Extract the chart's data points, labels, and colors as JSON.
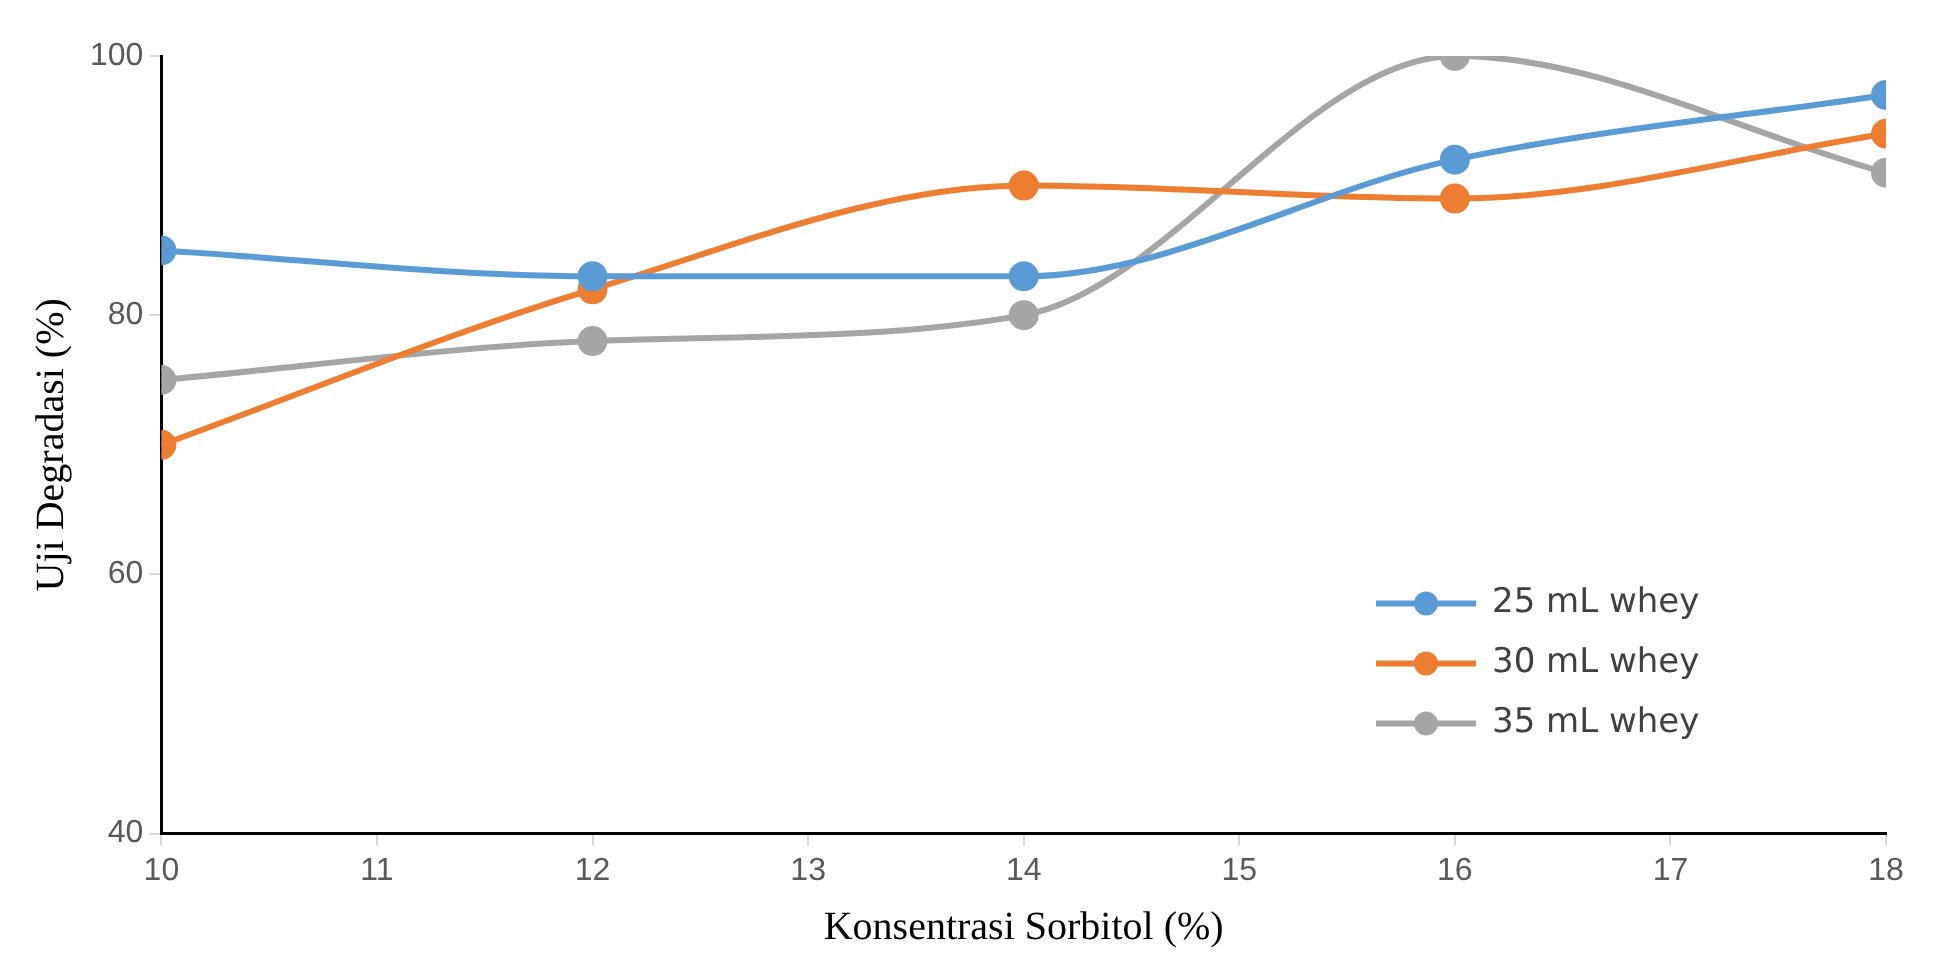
{
  "chart_data": {
    "type": "line",
    "xlabel": "Konsentrasi Sorbitol (%)",
    "ylabel": "Uji Degradasi (%)",
    "x": [
      10,
      12,
      14,
      16,
      18
    ],
    "series": [
      {
        "name": "25 mL whey",
        "color": "#5b9bd5",
        "values": [
          85,
          83,
          83,
          92,
          97
        ]
      },
      {
        "name": "30 mL whey",
        "color": "#ed7d31",
        "values": [
          70,
          82,
          90,
          89,
          94
        ]
      },
      {
        "name": "35 mL whey",
        "color": "#a5a5a5",
        "values": [
          75,
          78,
          80,
          100,
          91
        ]
      }
    ],
    "xlim": [
      10,
      18
    ],
    "xticks": [
      10,
      11,
      12,
      13,
      14,
      15,
      16,
      17,
      18
    ],
    "ylim": [
      40,
      100
    ],
    "yticks": [
      40,
      60,
      80,
      100
    ],
    "grid": false,
    "legend": "bottom right",
    "marker": "circle",
    "line_style": "solid"
  }
}
